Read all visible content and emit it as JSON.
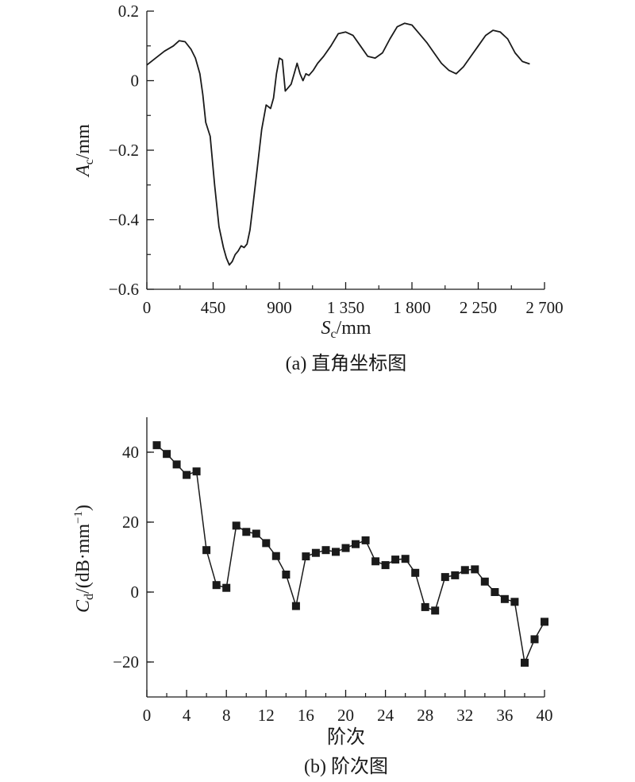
{
  "chart_data": [
    {
      "type": "line",
      "caption": "(a) 直角坐标图",
      "xlabel": "S",
      "xlabel_sub": "c",
      "xlabel_unit": "/mm",
      "ylabel": "A",
      "ylabel_sub": "c",
      "ylabel_unit": "/mm",
      "xlim": [
        0,
        2700
      ],
      "ylim": [
        -0.6,
        0.2
      ],
      "xticks": [
        0,
        450,
        900,
        1350,
        1800,
        2250,
        2700
      ],
      "xtick_labels": [
        "0",
        "450",
        "900",
        "1 350",
        "1 800",
        "2 250",
        "2 700"
      ],
      "yticks": [
        -0.6,
        -0.4,
        -0.2,
        0,
        0.2
      ],
      "ytick_labels": [
        "−0.6",
        "−0.4",
        "−0.2",
        "0",
        "0.2"
      ],
      "grid": false,
      "x": [
        0,
        60,
        120,
        180,
        220,
        260,
        300,
        330,
        360,
        380,
        400,
        430,
        460,
        490,
        520,
        540,
        560,
        580,
        600,
        620,
        640,
        660,
        680,
        700,
        720,
        750,
        780,
        810,
        840,
        860,
        880,
        900,
        920,
        940,
        960,
        980,
        1000,
        1020,
        1040,
        1060,
        1080,
        1100,
        1130,
        1160,
        1200,
        1250,
        1300,
        1350,
        1400,
        1450,
        1500,
        1550,
        1600,
        1650,
        1700,
        1750,
        1800,
        1850,
        1900,
        1950,
        2000,
        2050,
        2100,
        2150,
        2200,
        2250,
        2300,
        2350,
        2400,
        2450,
        2500,
        2550,
        2600
      ],
      "y": [
        0.045,
        0.065,
        0.085,
        0.1,
        0.115,
        0.112,
        0.09,
        0.065,
        0.02,
        -0.04,
        -0.12,
        -0.16,
        -0.3,
        -0.42,
        -0.48,
        -0.51,
        -0.53,
        -0.52,
        -0.5,
        -0.49,
        -0.475,
        -0.48,
        -0.47,
        -0.43,
        -0.36,
        -0.25,
        -0.14,
        -0.07,
        -0.08,
        -0.05,
        0.02,
        0.065,
        0.06,
        -0.03,
        -0.02,
        -0.01,
        0.02,
        0.05,
        0.02,
        0.0,
        0.02,
        0.015,
        0.03,
        0.05,
        0.07,
        0.1,
        0.135,
        0.14,
        0.13,
        0.1,
        0.07,
        0.065,
        0.08,
        0.12,
        0.155,
        0.165,
        0.16,
        0.135,
        0.11,
        0.08,
        0.05,
        0.03,
        0.02,
        0.04,
        0.07,
        0.1,
        0.13,
        0.145,
        0.14,
        0.12,
        0.08,
        0.055,
        0.048
      ]
    },
    {
      "type": "line",
      "markers": "square",
      "caption": "(b) 阶次图",
      "xlabel": "阶次",
      "ylabel": "C",
      "ylabel_sub": "d",
      "ylabel_unit": "/(dB·mm",
      "ylabel_sup": "−1",
      "ylabel_close": ")",
      "xlim": [
        0,
        40
      ],
      "ylim": [
        -30,
        50
      ],
      "xticks": [
        0,
        4,
        8,
        12,
        16,
        20,
        24,
        28,
        32,
        36,
        40
      ],
      "xtick_labels": [
        "0",
        "4",
        "8",
        "12",
        "16",
        "20",
        "24",
        "28",
        "32",
        "36",
        "40"
      ],
      "yticks": [
        -20,
        0,
        20,
        40
      ],
      "ytick_labels": [
        "−20",
        "0",
        "20",
        "40"
      ],
      "grid": false,
      "x": [
        1,
        2,
        3,
        4,
        5,
        6,
        7,
        8,
        9,
        10,
        11,
        12,
        13,
        14,
        15,
        16,
        17,
        18,
        19,
        20,
        21,
        22,
        23,
        24,
        25,
        26,
        27,
        28,
        29,
        30,
        31,
        32,
        33,
        34,
        35,
        36,
        37,
        38,
        39,
        40
      ],
      "y": [
        42,
        39.5,
        36.5,
        33.5,
        34.5,
        12,
        2,
        1.2,
        19,
        17.2,
        16.7,
        14,
        10.3,
        5,
        -4,
        10.2,
        11.2,
        12,
        11.5,
        12.6,
        13.7,
        14.8,
        8.8,
        7.7,
        9.3,
        9.5,
        5.5,
        -4.3,
        -5.3,
        4.3,
        4.8,
        6.3,
        6.5,
        3,
        0,
        -2,
        -2.8,
        -20.2,
        -13.5,
        -8.5
      ]
    }
  ]
}
